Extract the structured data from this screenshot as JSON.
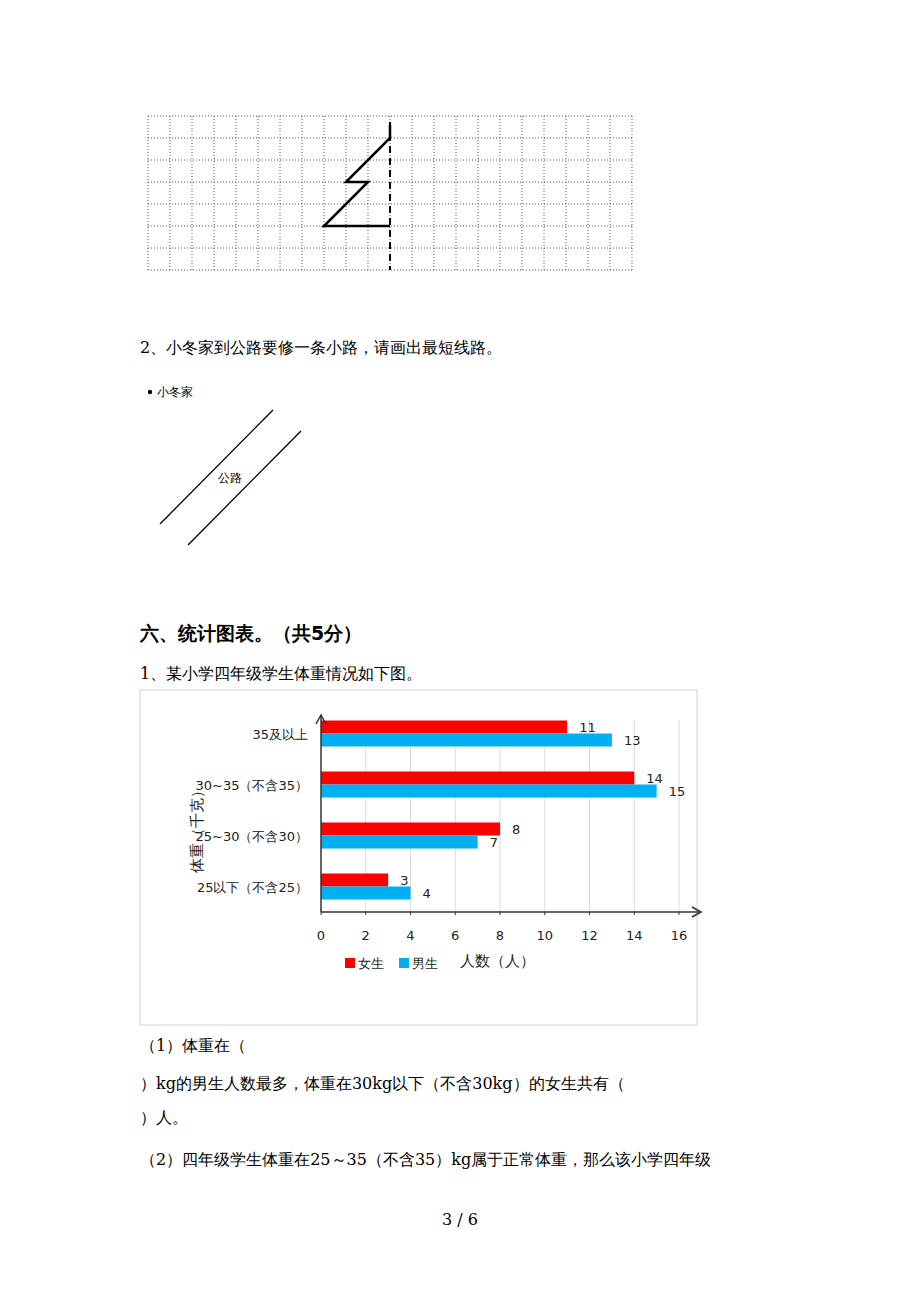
{
  "question_2": {
    "text": "2、小冬家到公路要修一条小路，请画出最短线路。",
    "house_label": "小冬家",
    "road_label": "公路"
  },
  "section": {
    "title": "六、统计图表。（共5分）"
  },
  "question_1": {
    "text": "1、某小学四年级学生体重情况如下图。"
  },
  "chart_data": {
    "type": "bar",
    "orientation": "horizontal",
    "categories": [
      "25以下（不含25）",
      "25~30（不含30）",
      "30~35（不含35）",
      "35及以上"
    ],
    "series": [
      {
        "name": "女生",
        "color": "#ff0000",
        "values": [
          3,
          8,
          14,
          11
        ]
      },
      {
        "name": "男生",
        "color": "#00b0f0",
        "values": [
          4,
          7,
          15,
          13
        ]
      }
    ],
    "xlabel": "人数（人）",
    "ylabel": "体重（千克）",
    "xlim": [
      0,
      16
    ],
    "xticks": [
      0,
      2,
      4,
      6,
      8,
      10,
      12,
      14,
      16
    ],
    "grid": true,
    "legend": "bottom",
    "data_labels": true
  },
  "sub_questions": [
    "（1）体重在（",
    "）kg的男生人数最多，体重在30kg以下（不含30kg）的女生共有（",
    "）人。",
    "（2）四年级学生体重在25～35（不含35）kg属于正常体重，那么该小学四年级"
  ],
  "footer": {
    "page": "3 / 6"
  }
}
